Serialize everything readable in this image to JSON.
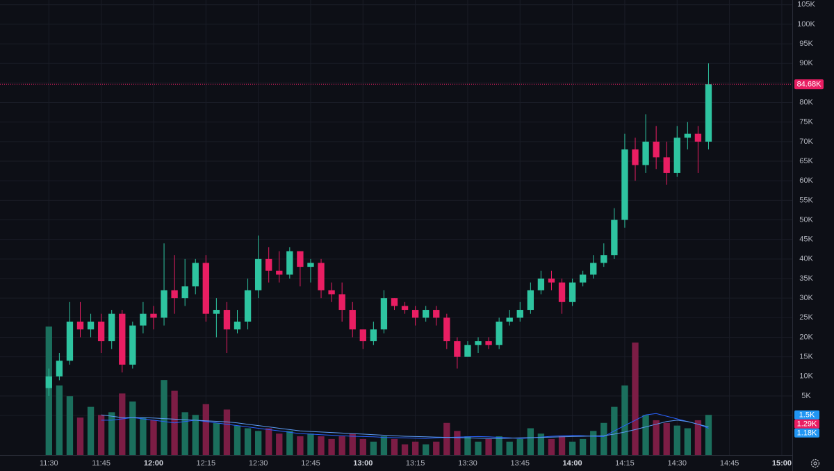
{
  "chart_data": {
    "type": "candlestick",
    "x": [
      "11:30",
      "11:33",
      "11:36",
      "11:39",
      "11:42",
      "11:45",
      "11:48",
      "11:51",
      "11:54",
      "11:57",
      "12:00",
      "12:03",
      "12:06",
      "12:09",
      "12:12",
      "12:15",
      "12:18",
      "12:21",
      "12:24",
      "12:27",
      "12:30",
      "12:33",
      "12:36",
      "12:39",
      "12:42",
      "12:45",
      "12:48",
      "12:51",
      "12:54",
      "12:57",
      "13:00",
      "13:03",
      "13:06",
      "13:09",
      "13:12",
      "13:15",
      "13:18",
      "13:21",
      "13:24",
      "13:27",
      "13:30",
      "13:33",
      "13:36",
      "13:39",
      "13:42",
      "13:45",
      "13:48",
      "13:51",
      "13:54",
      "13:57",
      "14:00",
      "14:03",
      "14:06",
      "14:09",
      "14:12",
      "14:15",
      "14:18",
      "14:21",
      "14:24",
      "14:27",
      "14:30",
      "14:33",
      "14:36",
      "14:39"
    ],
    "open": [
      7000,
      10000,
      14000,
      24000,
      22000,
      24000,
      19000,
      26000,
      13000,
      23000,
      26000,
      25000,
      32000,
      30000,
      33000,
      39000,
      26000,
      27000,
      22000,
      24000,
      32000,
      40000,
      37000,
      36000,
      42000,
      38000,
      39000,
      32000,
      31000,
      27000,
      22000,
      19000,
      22000,
      30000,
      28000,
      27000,
      25000,
      27000,
      25000,
      19000,
      15000,
      18000,
      19000,
      18000,
      24000,
      25000,
      27000,
      32000,
      35000,
      34000,
      29000,
      34000,
      36000,
      39000,
      41000,
      50000,
      68000,
      64000,
      70000,
      66000,
      62000,
      71000,
      72000,
      70000
    ],
    "high": [
      12000,
      16000,
      29000,
      29000,
      26000,
      26000,
      27000,
      27000,
      24000,
      29000,
      28000,
      44000,
      41000,
      40000,
      40000,
      41000,
      30000,
      29000,
      27000,
      35000,
      46000,
      43000,
      42000,
      43000,
      42000,
      40000,
      40000,
      34000,
      34000,
      29000,
      22000,
      24000,
      32000,
      30000,
      29000,
      28000,
      28000,
      28000,
      26000,
      20000,
      19000,
      20000,
      20000,
      25000,
      27000,
      29000,
      34000,
      37000,
      37000,
      35000,
      35000,
      37000,
      41000,
      44000,
      53000,
      72000,
      71000,
      77000,
      74000,
      70000,
      74000,
      75000,
      74000,
      90000
    ],
    "low": [
      5000,
      9000,
      13000,
      20000,
      20000,
      16000,
      17000,
      11000,
      12000,
      21000,
      22000,
      23000,
      26000,
      28000,
      31000,
      24000,
      20000,
      16000,
      21000,
      22000,
      30000,
      34000,
      34000,
      35000,
      33000,
      34000,
      30000,
      29000,
      24000,
      20000,
      17000,
      18000,
      21000,
      27000,
      26000,
      23000,
      24000,
      23000,
      17000,
      12000,
      15000,
      16000,
      17000,
      17000,
      23000,
      24000,
      26000,
      31000,
      32000,
      26000,
      28000,
      33000,
      35000,
      38000,
      40000,
      48000,
      60000,
      62000,
      63000,
      59000,
      61000,
      68000,
      62000,
      68000
    ],
    "close": [
      10000,
      14000,
      24000,
      22000,
      24000,
      19000,
      26000,
      13000,
      23000,
      26000,
      25000,
      32000,
      30000,
      33000,
      39000,
      26000,
      27000,
      22000,
      24000,
      32000,
      40000,
      37000,
      36000,
      42000,
      38000,
      39000,
      32000,
      31000,
      27000,
      22000,
      19000,
      22000,
      30000,
      28000,
      27000,
      25000,
      27000,
      25000,
      19000,
      15000,
      18000,
      19000,
      18000,
      24000,
      25000,
      27000,
      32000,
      35000,
      34000,
      29000,
      34000,
      36000,
      39000,
      41000,
      50000,
      68000,
      64000,
      70000,
      66000,
      62000,
      71000,
      72000,
      70000,
      84680
    ],
    "volume": [
      4800,
      2600,
      2200,
      1400,
      1800,
      1500,
      1600,
      2300,
      2000,
      1400,
      1300,
      2800,
      2400,
      1600,
      1500,
      1900,
      1200,
      1700,
      1100,
      1000,
      900,
      1000,
      800,
      900,
      700,
      800,
      700,
      600,
      700,
      800,
      600,
      500,
      700,
      600,
      400,
      500,
      400,
      500,
      1200,
      900,
      700,
      500,
      600,
      700,
      500,
      600,
      1000,
      800,
      600,
      700,
      500,
      600,
      900,
      1200,
      1800,
      2600,
      4200,
      1500,
      1300,
      1200,
      1100,
      1000,
      1300,
      1500
    ],
    "volume_ma": [
      {
        "color": "#2962ff",
        "values": [
          null,
          null,
          null,
          null,
          null,
          1300,
          1300,
          1350,
          1400,
          1350,
          1300,
          1250,
          1200,
          1250,
          1300,
          1250,
          1200,
          1150,
          1100,
          1050,
          1000,
          950,
          900,
          850,
          800,
          780,
          760,
          740,
          720,
          700,
          690,
          680,
          660,
          650,
          640,
          630,
          620,
          640,
          660,
          670,
          680,
          690,
          680,
          660,
          640,
          620,
          640,
          670,
          700,
          720,
          740,
          720,
          700,
          690,
          900,
          1100,
          1300,
          1500,
          1550,
          1450,
          1350,
          1250,
          1150,
          1000
        ]
      },
      {
        "color": "#5b9cf6",
        "values": [
          null,
          null,
          null,
          null,
          null,
          1500,
          1450,
          1400,
          1400,
          1400,
          1380,
          1360,
          1340,
          1320,
          1300,
          1280,
          1260,
          1240,
          1200,
          1150,
          1100,
          1050,
          1000,
          950,
          900,
          880,
          860,
          840,
          820,
          800,
          780,
          760,
          740,
          720,
          700,
          690,
          680,
          670,
          660,
          650,
          640,
          630,
          620,
          620,
          630,
          640,
          650,
          660,
          670,
          680,
          690,
          700,
          710,
          720,
          780,
          860,
          950,
          1050,
          1150,
          1250,
          1300,
          1250,
          1150,
          1050
        ]
      }
    ],
    "up_color": "#2ec4a0",
    "down_color": "#e91e63",
    "volume_up_color": "#1b6f5d",
    "volume_down_color": "#7c1d45",
    "xlim": [
      "11:16",
      "15:03"
    ],
    "xticks": [
      "11:30",
      "11:45",
      "12:00",
      "12:15",
      "12:30",
      "12:45",
      "13:00",
      "13:15",
      "13:30",
      "13:45",
      "14:00",
      "14:15",
      "14:30",
      "14:45",
      "15:00"
    ],
    "ylim": [
      -10100,
      106200
    ],
    "yticks": [
      0,
      {
        "value": 5000,
        "label": "5K"
      },
      {
        "value": 10000,
        "label": "10K"
      },
      {
        "value": 15000,
        "label": "15K"
      },
      {
        "value": 20000,
        "label": "20K"
      },
      {
        "value": 25000,
        "label": "25K"
      },
      {
        "value": 30000,
        "label": "30K"
      },
      {
        "value": 35000,
        "label": "35K"
      },
      {
        "value": 40000,
        "label": "40K"
      },
      {
        "value": 45000,
        "label": "45K"
      },
      {
        "value": 50000,
        "label": "50K"
      },
      {
        "value": 55000,
        "label": "55K"
      },
      {
        "value": 60000,
        "label": "60K"
      },
      {
        "value": 65000,
        "label": "65K"
      },
      {
        "value": 70000,
        "label": "70K"
      },
      {
        "value": 75000,
        "label": "75K"
      },
      {
        "value": 80000,
        "label": "80K"
      },
      {
        "value": 85000,
        "label": "85K"
      },
      {
        "value": 90000,
        "label": "90K"
      },
      {
        "value": 95000,
        "label": "95K"
      },
      {
        "value": 100000,
        "label": "100K"
      },
      {
        "value": 105000,
        "label": "105K"
      }
    ],
    "volume_ylim": [
      0,
      17000
    ],
    "last_price": {
      "value": 84680,
      "label": "84.68K",
      "color": "#e91e63"
    },
    "volume_labels": [
      {
        "value": 1500,
        "label": "1.5K",
        "color": "#2196f3"
      },
      {
        "value": 1290,
        "label": "1.29K",
        "color": "#e91e63"
      },
      {
        "value": 1180,
        "label": "1.18K",
        "color": "#2196f3"
      }
    ],
    "grid": true
  }
}
